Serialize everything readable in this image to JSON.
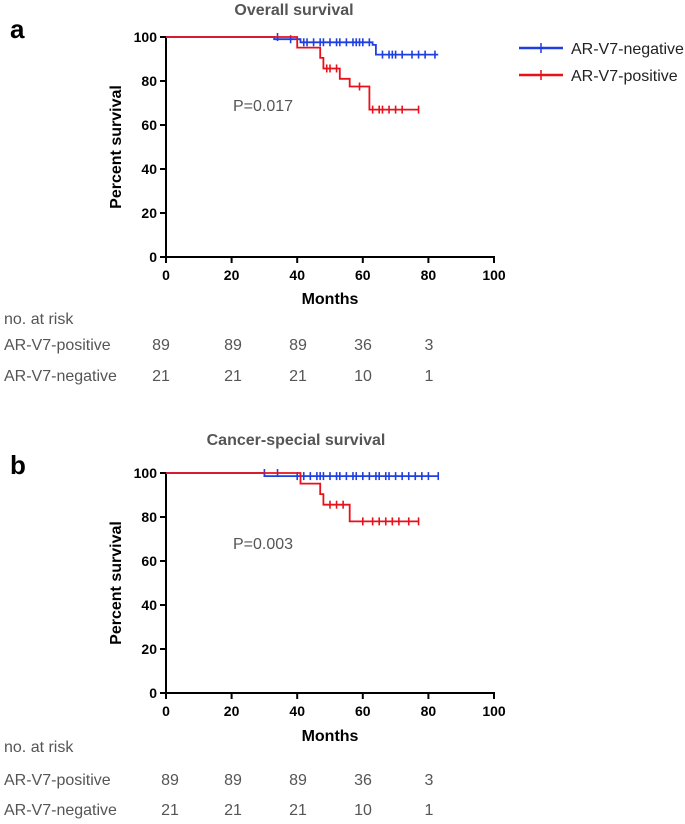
{
  "legend": {
    "negative_label": "AR-V7-negative",
    "positive_label": "AR-V7-positive"
  },
  "colors": {
    "negative": "#1f3fe0",
    "positive": "#e8111b",
    "axis": "#000000",
    "text": "#555555"
  },
  "chart_data": [
    {
      "type": "line",
      "panel_label": "a",
      "title": "Overall survival",
      "xlabel": "Months",
      "ylabel": "Percent survival",
      "xlim": [
        0,
        100
      ],
      "ylim": [
        0,
        100
      ],
      "xticks": [
        0,
        20,
        40,
        60,
        80,
        100
      ],
      "yticks": [
        0,
        20,
        40,
        60,
        80,
        100
      ],
      "annotation": "P=0.017",
      "series": [
        {
          "name": "AR-V7-negative",
          "key": "negative",
          "steps": [
            [
              0,
              100
            ],
            [
              33,
              100
            ],
            [
              33,
              99
            ],
            [
              41,
              99
            ],
            [
              41,
              97.6
            ],
            [
              63,
              97.6
            ],
            [
              63,
              96.4
            ],
            [
              64,
              96.4
            ],
            [
              64,
              92
            ],
            [
              83,
              92
            ]
          ],
          "censors": [
            [
              34,
              100
            ],
            [
              38,
              99
            ],
            [
              42,
              97.6
            ],
            [
              43,
              97.6
            ],
            [
              45,
              97.6
            ],
            [
              47,
              97.6
            ],
            [
              48,
              97.6
            ],
            [
              50,
              97.6
            ],
            [
              52,
              97.6
            ],
            [
              53,
              97.6
            ],
            [
              55,
              97.6
            ],
            [
              57,
              97.6
            ],
            [
              58,
              97.6
            ],
            [
              59,
              97.6
            ],
            [
              60,
              97.6
            ],
            [
              62,
              97.6
            ],
            [
              66,
              92
            ],
            [
              68,
              92
            ],
            [
              69,
              92
            ],
            [
              70,
              92
            ],
            [
              72,
              92
            ],
            [
              75,
              92
            ],
            [
              77,
              92
            ],
            [
              79,
              92
            ],
            [
              82,
              92
            ]
          ]
        },
        {
          "name": "AR-V7-positive",
          "key": "positive",
          "steps": [
            [
              0,
              100
            ],
            [
              40,
              100
            ],
            [
              40,
              95.2
            ],
            [
              47,
              95.2
            ],
            [
              47,
              90.5
            ],
            [
              48,
              90.5
            ],
            [
              48,
              85.7
            ],
            [
              53,
              85.7
            ],
            [
              53,
              81
            ],
            [
              56,
              81
            ],
            [
              56,
              77.5
            ],
            [
              62,
              77.5
            ],
            [
              62,
              67
            ],
            [
              77,
              67
            ]
          ],
          "censors": [
            [
              49,
              85.7
            ],
            [
              50,
              85.7
            ],
            [
              52,
              85.7
            ],
            [
              59,
              77.5
            ],
            [
              63,
              67
            ],
            [
              65,
              67
            ],
            [
              66,
              67
            ],
            [
              68,
              67
            ],
            [
              70,
              67
            ],
            [
              72,
              67
            ],
            [
              77,
              67
            ]
          ]
        }
      ]
    },
    {
      "type": "line",
      "panel_label": "b",
      "title": "Cancer-special survival",
      "xlabel": "Months",
      "ylabel": "Percent survival",
      "xlim": [
        0,
        100
      ],
      "ylim": [
        0,
        100
      ],
      "xticks": [
        0,
        20,
        40,
        60,
        80,
        100
      ],
      "yticks": [
        0,
        20,
        40,
        60,
        80,
        100
      ],
      "annotation": "P=0.003",
      "series": [
        {
          "name": "AR-V7-negative",
          "key": "negative",
          "steps": [
            [
              0,
              100
            ],
            [
              30,
              100
            ],
            [
              30,
              98.6
            ],
            [
              83,
              98.6
            ]
          ],
          "censors": [
            [
              30,
              100
            ],
            [
              34,
              100
            ],
            [
              40,
              98.6
            ],
            [
              42,
              98.6
            ],
            [
              44,
              98.6
            ],
            [
              46,
              98.6
            ],
            [
              47,
              98.6
            ],
            [
              48,
              98.6
            ],
            [
              50,
              98.6
            ],
            [
              52,
              98.6
            ],
            [
              53,
              98.6
            ],
            [
              55,
              98.6
            ],
            [
              57,
              98.6
            ],
            [
              58,
              98.6
            ],
            [
              60,
              98.6
            ],
            [
              62,
              98.6
            ],
            [
              64,
              98.6
            ],
            [
              65,
              98.6
            ],
            [
              67,
              98.6
            ],
            [
              68,
              98.6
            ],
            [
              70,
              98.6
            ],
            [
              72,
              98.6
            ],
            [
              74,
              98.6
            ],
            [
              76,
              98.6
            ],
            [
              78,
              98.6
            ],
            [
              80,
              98.6
            ],
            [
              83,
              98.6
            ]
          ]
        },
        {
          "name": "AR-V7-positive",
          "key": "positive",
          "steps": [
            [
              0,
              100
            ],
            [
              41,
              100
            ],
            [
              41,
              95.2
            ],
            [
              47,
              95.2
            ],
            [
              47,
              90.4
            ],
            [
              48,
              90.4
            ],
            [
              48,
              85.6
            ],
            [
              56,
              85.6
            ],
            [
              56,
              78
            ],
            [
              77,
              78
            ]
          ],
          "censors": [
            [
              50,
              85.6
            ],
            [
              52,
              85.6
            ],
            [
              54,
              85.6
            ],
            [
              60,
              78
            ],
            [
              63,
              78
            ],
            [
              65,
              78
            ],
            [
              67,
              78
            ],
            [
              69,
              78
            ],
            [
              71,
              78
            ],
            [
              74,
              78
            ],
            [
              77,
              78
            ]
          ]
        }
      ]
    }
  ],
  "risk_tables": [
    {
      "title": "no. at risk",
      "rows": [
        {
          "label": "AR-V7-positive",
          "values": [
            "89",
            "89",
            "89",
            "36",
            "3"
          ]
        },
        {
          "label": "AR-V7-negative",
          "values": [
            "21",
            "21",
            "21",
            "10",
            "1"
          ]
        }
      ]
    },
    {
      "title": "no. at risk",
      "rows": [
        {
          "label": "AR-V7-positive",
          "values": [
            "89",
            "89",
            "89",
            "36",
            "3"
          ]
        },
        {
          "label": "AR-V7-negative",
          "values": [
            "21",
            "21",
            "21",
            "10",
            "1"
          ]
        }
      ]
    }
  ]
}
